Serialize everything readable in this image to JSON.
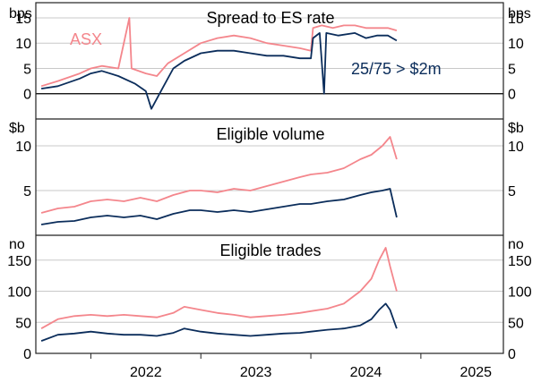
{
  "colors": {
    "asx": "#f4868c",
    "other": "#0b2d5b",
    "grid": "#c8c8c8",
    "frame": "#222222"
  },
  "x_axis": {
    "ticks": [
      "2022",
      "2023",
      "2024",
      "2025"
    ],
    "range": [
      2021.5,
      2025.75
    ]
  },
  "chart_data": [
    {
      "type": "line",
      "title": "Spread to ES rate",
      "unit_left": "bps",
      "unit_right": "bps",
      "ylim": [
        -5,
        18
      ],
      "yticks": [
        0,
        5,
        10,
        15
      ],
      "annotations": {
        "series_a": "ASX",
        "series_b": "25/75 > $2m"
      },
      "grid": true,
      "series": [
        {
          "name": "ASX",
          "color_key": "asx",
          "points": [
            [
              2021.55,
              1.5
            ],
            [
              2021.7,
              2.5
            ],
            [
              2021.9,
              4.0
            ],
            [
              2022.0,
              5.0
            ],
            [
              2022.1,
              5.5
            ],
            [
              2022.25,
              5.0
            ],
            [
              2022.35,
              15.0
            ],
            [
              2022.37,
              5.0
            ],
            [
              2022.5,
              4.0
            ],
            [
              2022.6,
              3.5
            ],
            [
              2022.7,
              6.0
            ],
            [
              2022.85,
              8.0
            ],
            [
              2023.0,
              10.0
            ],
            [
              2023.15,
              11.0
            ],
            [
              2023.3,
              11.5
            ],
            [
              2023.45,
              11.0
            ],
            [
              2023.6,
              10.0
            ],
            [
              2023.75,
              9.5
            ],
            [
              2023.9,
              9.0
            ],
            [
              2024.0,
              8.5
            ],
            [
              2024.02,
              13.0
            ],
            [
              2024.1,
              13.5
            ],
            [
              2024.2,
              13.0
            ],
            [
              2024.3,
              13.5
            ],
            [
              2024.4,
              13.5
            ],
            [
              2024.5,
              13.0
            ],
            [
              2024.6,
              13.0
            ],
            [
              2024.7,
              13.0
            ],
            [
              2024.78,
              12.5
            ]
          ]
        },
        {
          "name": "25/75 > $2m",
          "color_key": "other",
          "points": [
            [
              2021.55,
              1.0
            ],
            [
              2021.7,
              1.5
            ],
            [
              2021.9,
              3.0
            ],
            [
              2022.0,
              4.0
            ],
            [
              2022.1,
              4.5
            ],
            [
              2022.25,
              3.5
            ],
            [
              2022.4,
              2.0
            ],
            [
              2022.5,
              0.5
            ],
            [
              2022.55,
              -3.0
            ],
            [
              2022.65,
              1.0
            ],
            [
              2022.75,
              5.0
            ],
            [
              2022.85,
              6.5
            ],
            [
              2023.0,
              8.0
            ],
            [
              2023.15,
              8.5
            ],
            [
              2023.3,
              8.5
            ],
            [
              2023.45,
              8.0
            ],
            [
              2023.6,
              7.5
            ],
            [
              2023.75,
              7.5
            ],
            [
              2023.9,
              7.0
            ],
            [
              2024.0,
              7.0
            ],
            [
              2024.02,
              11.0
            ],
            [
              2024.08,
              12.0
            ],
            [
              2024.12,
              0.0
            ],
            [
              2024.14,
              12.0
            ],
            [
              2024.25,
              11.5
            ],
            [
              2024.4,
              12.0
            ],
            [
              2024.5,
              11.0
            ],
            [
              2024.6,
              11.5
            ],
            [
              2024.7,
              11.5
            ],
            [
              2024.78,
              10.5
            ]
          ]
        }
      ]
    },
    {
      "type": "line",
      "title": "Eligible volume",
      "unit_left": "$b",
      "unit_right": "$b",
      "ylim": [
        0,
        13
      ],
      "yticks": [
        5,
        10
      ],
      "grid": true,
      "series": [
        {
          "name": "ASX",
          "color_key": "asx",
          "points": [
            [
              2021.55,
              2.5
            ],
            [
              2021.7,
              3.0
            ],
            [
              2021.85,
              3.2
            ],
            [
              2022.0,
              3.8
            ],
            [
              2022.15,
              4.0
            ],
            [
              2022.3,
              3.8
            ],
            [
              2022.45,
              4.2
            ],
            [
              2022.6,
              3.8
            ],
            [
              2022.75,
              4.5
            ],
            [
              2022.9,
              5.0
            ],
            [
              2023.0,
              5.0
            ],
            [
              2023.15,
              4.8
            ],
            [
              2023.3,
              5.2
            ],
            [
              2023.45,
              5.0
            ],
            [
              2023.6,
              5.5
            ],
            [
              2023.75,
              6.0
            ],
            [
              2023.9,
              6.5
            ],
            [
              2024.0,
              6.8
            ],
            [
              2024.15,
              7.0
            ],
            [
              2024.3,
              7.5
            ],
            [
              2024.45,
              8.5
            ],
            [
              2024.55,
              9.0
            ],
            [
              2024.65,
              10.0
            ],
            [
              2024.72,
              11.0
            ],
            [
              2024.78,
              8.5
            ]
          ]
        },
        {
          "name": "25/75 > $2m",
          "color_key": "other",
          "points": [
            [
              2021.55,
              1.2
            ],
            [
              2021.7,
              1.5
            ],
            [
              2021.85,
              1.6
            ],
            [
              2022.0,
              2.0
            ],
            [
              2022.15,
              2.2
            ],
            [
              2022.3,
              2.0
            ],
            [
              2022.45,
              2.2
            ],
            [
              2022.6,
              1.8
            ],
            [
              2022.75,
              2.4
            ],
            [
              2022.9,
              2.8
            ],
            [
              2023.0,
              2.8
            ],
            [
              2023.15,
              2.6
            ],
            [
              2023.3,
              2.8
            ],
            [
              2023.45,
              2.6
            ],
            [
              2023.6,
              2.9
            ],
            [
              2023.75,
              3.2
            ],
            [
              2023.9,
              3.5
            ],
            [
              2024.0,
              3.5
            ],
            [
              2024.15,
              3.8
            ],
            [
              2024.3,
              4.0
            ],
            [
              2024.45,
              4.5
            ],
            [
              2024.55,
              4.8
            ],
            [
              2024.65,
              5.0
            ],
            [
              2024.72,
              5.2
            ],
            [
              2024.78,
              2.0
            ]
          ]
        }
      ]
    },
    {
      "type": "line",
      "title": "Eligible trades",
      "unit_left": "no",
      "unit_right": "no",
      "ylim": [
        0,
        190
      ],
      "yticks": [
        0,
        50,
        100,
        150
      ],
      "grid": true,
      "series": [
        {
          "name": "ASX",
          "color_key": "asx",
          "points": [
            [
              2021.55,
              40
            ],
            [
              2021.7,
              55
            ],
            [
              2021.85,
              60
            ],
            [
              2022.0,
              62
            ],
            [
              2022.15,
              60
            ],
            [
              2022.3,
              62
            ],
            [
              2022.45,
              60
            ],
            [
              2022.6,
              58
            ],
            [
              2022.75,
              65
            ],
            [
              2022.85,
              75
            ],
            [
              2023.0,
              70
            ],
            [
              2023.15,
              65
            ],
            [
              2023.3,
              62
            ],
            [
              2023.45,
              58
            ],
            [
              2023.6,
              60
            ],
            [
              2023.75,
              62
            ],
            [
              2023.9,
              65
            ],
            [
              2024.0,
              68
            ],
            [
              2024.15,
              72
            ],
            [
              2024.3,
              80
            ],
            [
              2024.45,
              100
            ],
            [
              2024.55,
              120
            ],
            [
              2024.62,
              150
            ],
            [
              2024.68,
              170
            ],
            [
              2024.72,
              140
            ],
            [
              2024.78,
              100
            ]
          ]
        },
        {
          "name": "25/75 > $2m",
          "color_key": "other",
          "points": [
            [
              2021.55,
              20
            ],
            [
              2021.7,
              30
            ],
            [
              2021.85,
              32
            ],
            [
              2022.0,
              35
            ],
            [
              2022.15,
              32
            ],
            [
              2022.3,
              30
            ],
            [
              2022.45,
              30
            ],
            [
              2022.6,
              28
            ],
            [
              2022.75,
              33
            ],
            [
              2022.85,
              40
            ],
            [
              2023.0,
              35
            ],
            [
              2023.15,
              32
            ],
            [
              2023.3,
              30
            ],
            [
              2023.45,
              28
            ],
            [
              2023.6,
              30
            ],
            [
              2023.75,
              32
            ],
            [
              2023.9,
              33
            ],
            [
              2024.0,
              35
            ],
            [
              2024.15,
              38
            ],
            [
              2024.3,
              40
            ],
            [
              2024.45,
              45
            ],
            [
              2024.55,
              55
            ],
            [
              2024.62,
              70
            ],
            [
              2024.68,
              80
            ],
            [
              2024.72,
              70
            ],
            [
              2024.78,
              40
            ]
          ]
        }
      ]
    }
  ]
}
